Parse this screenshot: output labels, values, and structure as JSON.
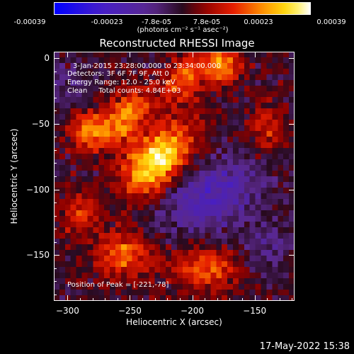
{
  "colorbar": {
    "range": [
      -0.00039,
      0.00039
    ],
    "colormap": "blue-purple-red-yellow-white",
    "tick_labels": [
      "-0.00039",
      "-0.00023",
      "-7.8e-05",
      "7.8e-05",
      "0.00023",
      "0.00039"
    ],
    "units": "(photons cm⁻² s⁻¹ asec⁻²)"
  },
  "chart_data": {
    "type": "heatmap",
    "title": "Reconstructed RHESSI Image",
    "xlabel": "Heliocentric X (arcsec)",
    "ylabel": "Heliocentric Y (arcsec)",
    "xlim": [
      -311,
      -118
    ],
    "ylim": [
      -185,
      5
    ],
    "x_ticks": [
      -300,
      -250,
      -200,
      -150
    ],
    "y_ticks": [
      0,
      -50,
      -100,
      -150
    ],
    "info_lines": [
      "3-Jan-2015 23:28:00.000 to 23:34:00.000",
      "Detectors: 3F 6F 7F 9F, Att 0",
      "Energy Range: 12.0 - 25.0 keV",
      "Clean     Total counts: 4.84E+03"
    ],
    "peak_label": "Position of Peak = [-221,-78]",
    "peak": [
      -221,
      -78
    ],
    "sources": [
      {
        "x": -228,
        "y": -78,
        "sx": 22,
        "sy": 14,
        "amp": 1.0,
        "angle": 45
      },
      {
        "x": -255,
        "y": -45,
        "sx": 18,
        "sy": 10,
        "amp": 0.65,
        "angle": 45
      },
      {
        "x": -285,
        "y": -55,
        "sx": 10,
        "sy": 10,
        "amp": 0.55,
        "angle": 0
      },
      {
        "x": -205,
        "y": -15,
        "sx": 14,
        "sy": 10,
        "amp": 0.55,
        "angle": 45
      },
      {
        "x": -175,
        "y": -5,
        "sx": 10,
        "sy": 10,
        "amp": 0.6,
        "angle": 0
      },
      {
        "x": -255,
        "y": -150,
        "sx": 16,
        "sy": 12,
        "amp": 0.55,
        "angle": 0
      },
      {
        "x": -190,
        "y": -160,
        "sx": 18,
        "sy": 12,
        "amp": 0.5,
        "angle": 0
      },
      {
        "x": -290,
        "y": -120,
        "sx": 10,
        "sy": 12,
        "amp": 0.4,
        "angle": 0
      },
      {
        "x": -140,
        "y": -55,
        "sx": 10,
        "sy": 14,
        "amp": 0.35,
        "angle": 0
      }
    ],
    "negatives": [
      {
        "x": -185,
        "y": -105,
        "sx": 30,
        "sy": 18,
        "amp": -0.5,
        "angle": 20
      },
      {
        "x": -300,
        "y": -20,
        "sx": 12,
        "sy": 12,
        "amp": -0.2,
        "angle": 0
      },
      {
        "x": -140,
        "y": -145,
        "sx": 14,
        "sy": 14,
        "amp": -0.25,
        "angle": 0
      }
    ]
  },
  "timestamp": "17-May-2022 15:38"
}
